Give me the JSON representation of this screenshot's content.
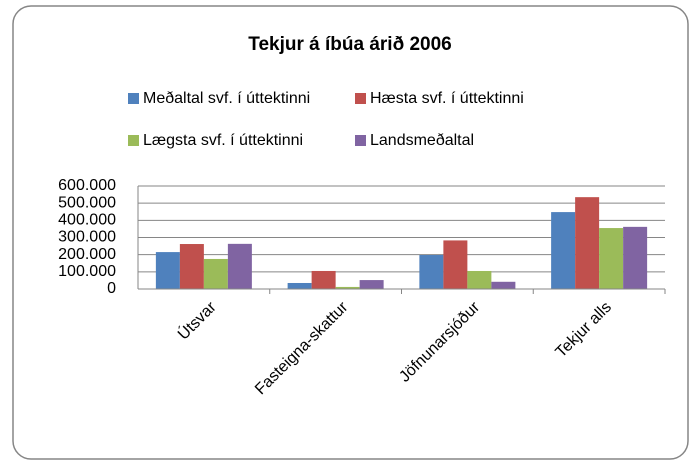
{
  "chart_data": {
    "type": "bar",
    "title": "Tekjur á íbúa árið 2006",
    "categories": [
      "Útsvar",
      "Fasteigna-skattur",
      "Jöfnunarsjóður",
      "Tekjur alls"
    ],
    "series": [
      {
        "name": "Meðaltal svf. í úttektinni",
        "color": "#4f81bd",
        "values": [
          215000,
          35000,
          198000,
          448000
        ]
      },
      {
        "name": "Hæsta svf. í úttektinni",
        "color": "#c0504d",
        "values": [
          262000,
          105000,
          283000,
          535000
        ]
      },
      {
        "name": "Lægsta svf. í úttektinni",
        "color": "#9bbb59",
        "values": [
          175000,
          12000,
          105000,
          355000
        ]
      },
      {
        "name": "Landsmeðaltal",
        "color": "#8064a2",
        "values": [
          263000,
          52000,
          42000,
          362000
        ]
      }
    ],
    "ylim": [
      0,
      600000
    ],
    "yticks": [
      0,
      {
        "value": 100000,
        "label": "100.000"
      },
      {
        "value": 200000,
        "label": "200.000"
      },
      {
        "value": 300000,
        "label": "300.000"
      },
      {
        "value": 400000,
        "label": "400.000"
      },
      {
        "value": 500000,
        "label": "500.000"
      },
      {
        "value": 600000,
        "label": "600.000"
      }
    ],
    "grid": true,
    "legend": "top"
  }
}
